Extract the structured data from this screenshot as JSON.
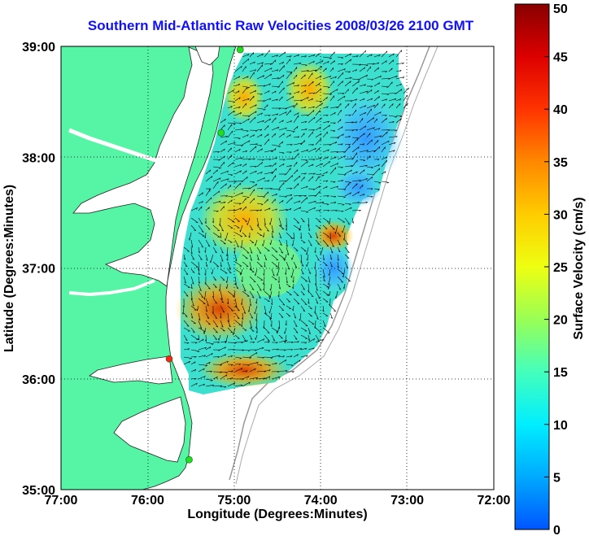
{
  "map": {
    "title": "Southern Mid-Atlantic Raw Velocities 2008/03/26 2100 GMT",
    "xlabel": "Longitude (Degrees:Minutes)",
    "ylabel": "Latitude (Degrees:Minutes)",
    "x_ticks": [
      "77:00",
      "76:00",
      "75:00",
      "74:00",
      "73:00",
      "72:00"
    ],
    "y_ticks": [
      "39:00",
      "38:00",
      "37:00",
      "36:00",
      "35:00"
    ],
    "lon_range": [
      -77,
      -72
    ],
    "lat_range": [
      35,
      39
    ],
    "grid": "dotted",
    "land_color": "#55f5a5",
    "field_description": "HF radar surface current vectors colored by speed",
    "stations": [
      {
        "lon": -74.93,
        "lat": 38.97,
        "color": "#22dd22"
      },
      {
        "lon": -75.15,
        "lat": 38.22,
        "color": "#22dd22"
      },
      {
        "lon": -75.75,
        "lat": 36.18,
        "color": "#ff2020"
      },
      {
        "lon": -75.52,
        "lat": 35.27,
        "color": "#22dd22"
      }
    ]
  },
  "colorbar": {
    "label": "Surface Velocity (cm/s)",
    "min": 0,
    "max": 50,
    "ticks": [
      "0",
      "5",
      "10",
      "15",
      "20",
      "25",
      "30",
      "35",
      "40",
      "45",
      "50"
    ],
    "colors": [
      "#0055ff",
      "#00aaff",
      "#00eeff",
      "#44ffbb",
      "#99ff55",
      "#eeff11",
      "#ffcc00",
      "#ff8800",
      "#ff3300",
      "#dd0000",
      "#880000"
    ]
  }
}
